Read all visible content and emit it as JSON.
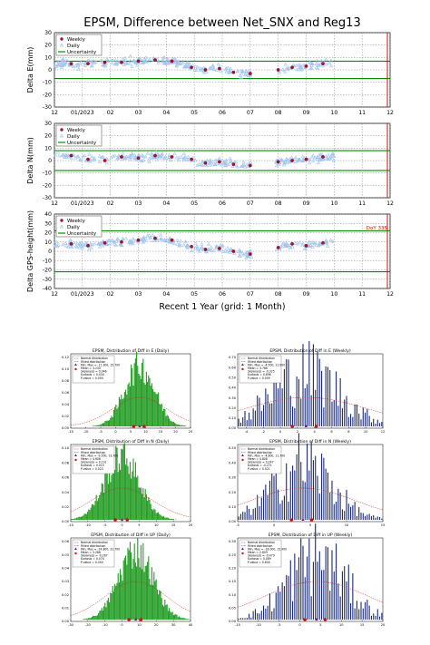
{
  "figure": {
    "title": "EPSM, Difference between Net_SNX and Reg13",
    "xlabel": "Recent 1 Year (grid: 1 Month)",
    "x_ticklabels": [
      "12",
      "01/2023",
      "02",
      "03",
      "04",
      "05",
      "06",
      "07",
      "08",
      "09",
      "10",
      "11",
      "12"
    ],
    "legend": [
      "Weekly",
      "Daily",
      "Uncertainty"
    ],
    "annotation": "DoY 335"
  },
  "colors": {
    "weekly": "#b0102a",
    "daily": "#9ec3ee",
    "uncertainty": "#0a8a0a",
    "daily_hist": "#1f9a1f",
    "weekly_hist": "#1c2a78",
    "mark_red": "#cc1111"
  },
  "chart_data": [
    {
      "type": "scatter",
      "title": "EPSM, Difference between Net_SNX and Reg13",
      "ylabel": "Delta E(mm)",
      "ylim": [
        -30,
        30
      ],
      "yticks": [
        30,
        20,
        10,
        0,
        -10,
        -20,
        -30
      ],
      "x": "months 0..12 (Dec 2022 to Dec 2023)",
      "uncertainty": [
        7,
        -7
      ],
      "series": [
        {
          "name": "Weekly",
          "x": [
            0.6,
            1.2,
            1.8,
            2.4,
            3.0,
            3.6,
            4.2,
            4.9,
            5.4,
            5.9,
            6.4,
            7.0,
            8.0,
            8.5,
            9.0,
            9.6
          ],
          "values": [
            5,
            5,
            6,
            6,
            7,
            8,
            7,
            2,
            0,
            1,
            -2,
            -3,
            0,
            2,
            3,
            5
          ]
        },
        {
          "name": "Daily",
          "x_range": [
            0,
            10
          ],
          "values_mean": "follows weekly",
          "spread": 4
        }
      ]
    },
    {
      "type": "scatter",
      "ylabel": "Delta N(mm)",
      "ylim": [
        -30,
        30
      ],
      "yticks": [
        30,
        20,
        10,
        0,
        -10,
        -20,
        -30
      ],
      "uncertainty": [
        8,
        -8
      ],
      "series": [
        {
          "name": "Weekly",
          "x": [
            0.6,
            1.2,
            1.8,
            2.4,
            3.0,
            3.6,
            4.2,
            4.9,
            5.4,
            5.9,
            6.4,
            7.0,
            8.0,
            8.5,
            9.0,
            9.6
          ],
          "values": [
            4,
            1,
            0,
            3,
            2,
            4,
            3,
            1,
            -2,
            -1,
            -3,
            -4,
            -1,
            0,
            1,
            3
          ]
        },
        {
          "name": "Daily",
          "x_range": [
            0,
            10
          ],
          "values_mean": "follows weekly",
          "spread": 4
        }
      ]
    },
    {
      "type": "scatter",
      "ylabel": "Delta GPS-height(mm)",
      "ylim": [
        -40,
        40
      ],
      "yticks": [
        40,
        30,
        20,
        10,
        0,
        -10,
        -20,
        -30,
        -40
      ],
      "uncertainty": [
        22,
        -22
      ],
      "series": [
        {
          "name": "Weekly",
          "x": [
            0.6,
            1.2,
            1.8,
            2.4,
            3.0,
            3.6,
            4.2,
            4.9,
            5.4,
            5.9,
            6.4,
            7.0,
            8.0,
            8.5,
            9.0,
            9.6
          ],
          "values": [
            8,
            6,
            9,
            10,
            12,
            14,
            12,
            5,
            2,
            3,
            0,
            -3,
            4,
            8,
            6,
            9
          ]
        },
        {
          "name": "Daily",
          "x_range": [
            0,
            10
          ],
          "values_mean": "follows weekly",
          "spread": 5
        }
      ]
    }
  ],
  "histograms": [
    {
      "title": "EPSM, Distribution of Diff in E (Daily)",
      "kind": "daily",
      "xlim": [
        -15,
        25
      ],
      "xticks": [
        -15,
        -10,
        -5,
        0,
        5,
        10,
        15,
        20,
        25
      ],
      "yticks": [
        0.0,
        0.02,
        0.04,
        0.06,
        0.08,
        0.1,
        0.12
      ],
      "center": 8,
      "width": 5,
      "legend": [
        "Normal distribution",
        "Fitted distribution",
        "Min, Max  = -11.300, 15.700",
        "Mean      =  3.230",
        "Skewness =  0.046",
        "Kurtosis  =  0.434",
        "P-value   =  0.000"
      ]
    },
    {
      "title": "EPSM, Distribution of Diff in E (Weekly)",
      "kind": "weekly",
      "xlim": [
        -5,
        12
      ],
      "xticks": [
        -4,
        -2,
        0,
        2,
        4,
        6,
        8,
        10,
        12
      ],
      "yticks": [
        0.0,
        0.1,
        0.2,
        0.3,
        0.4,
        0.5,
        0.6,
        0.7
      ],
      "center": 3,
      "width": 4,
      "legend": [
        "Normal distribution",
        "Fitted distribution",
        "Min, Max  = -4.500, 11.000",
        "Mean      =  3.766",
        "Skewness = -0.325",
        "Kurtosis  =  0.696",
        "P-value   =  0.009"
      ]
    },
    {
      "title": "EPSM, Distribution of Diff in N (Daily)",
      "kind": "daily",
      "xlim": [
        -15,
        20
      ],
      "xticks": [
        -15,
        -10,
        -5,
        0,
        5,
        10,
        15,
        20
      ],
      "yticks": [
        0.0,
        0.02,
        0.04,
        0.06,
        0.08,
        0.1
      ],
      "center": 0,
      "width": 5,
      "legend": [
        "Normal distribution",
        "Fitted distribution",
        "Min, Max  = -9.500, 13.700",
        "Mean      =  4.606",
        "Skewness =  0.191",
        "Kurtosis  =  0.010",
        "P-value   =  0.023"
      ]
    },
    {
      "title": "EPSM, Distribution of Diff in N (Weekly)",
      "kind": "weekly",
      "xlim": [
        -5,
        15
      ],
      "xticks": [
        -5,
        0,
        5,
        10,
        15
      ],
      "yticks": [
        0.0,
        0.1,
        0.2,
        0.3,
        0.4,
        0.5
      ],
      "center": 4,
      "width": 4,
      "legend": [
        "Normal distribution",
        "Fitted distribution",
        "Min, Max  = -4.800, 11.700",
        "Mean      =  4.808",
        "Skewness =  0.247",
        "Kurtosis  = -0.271",
        "P-value   =  0.021"
      ]
    },
    {
      "title": "EPSM, Distribution of Diff in UP (Daily)",
      "kind": "daily",
      "xlim": [
        -30,
        40
      ],
      "xticks": [
        -30,
        -20,
        -10,
        0,
        10,
        20,
        30,
        40
      ],
      "yticks": [
        0.0,
        0.01,
        0.02,
        0.03,
        0.04,
        0.05,
        0.06
      ],
      "center": 8,
      "width": 10,
      "legend": [
        "Normal distribution",
        "Fitted distribution",
        "Min, Max  = -24.800, 31.700",
        "Mean      =  3.286",
        "Skewness = -0.267",
        "Kurtosis  =  0.074",
        "P-value   =  0.450"
      ]
    },
    {
      "title": "EPSM, Distribution of Diff in UP (Weekly)",
      "kind": "weekly",
      "xlim": [
        -15,
        20
      ],
      "xticks": [
        -15,
        -10,
        -5,
        0,
        5,
        10,
        15,
        20
      ],
      "yticks": [
        0.0,
        0.05,
        0.1,
        0.15,
        0.2,
        0.25,
        0.3
      ],
      "center": 4,
      "width": 7,
      "legend": [
        "Normal distribution",
        "Fitted distribution",
        "Min, Max  = -18.000, 15.900",
        "Mean      =  2.609",
        "Skewness = -0.479",
        "Kurtosis  =  0.089",
        "P-value   =  0.600"
      ]
    }
  ]
}
